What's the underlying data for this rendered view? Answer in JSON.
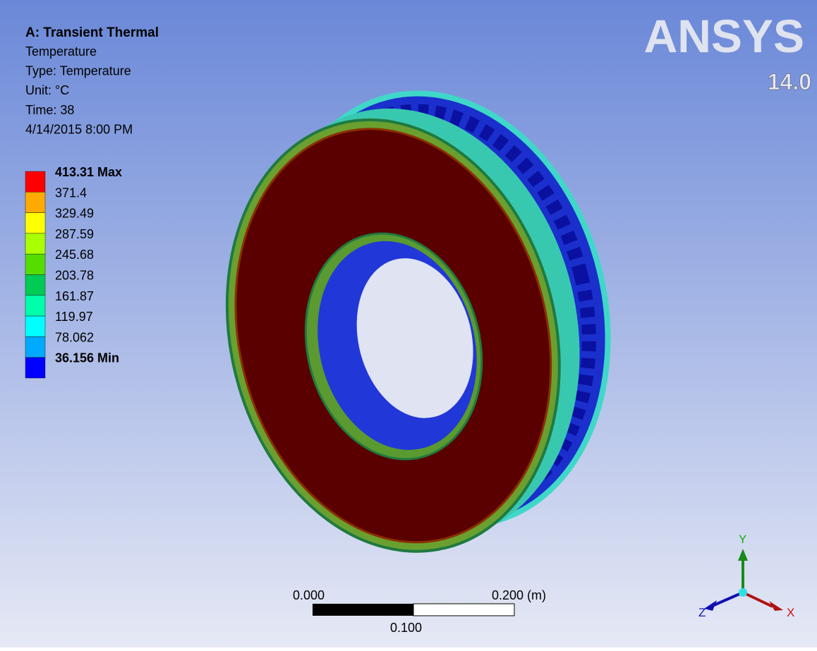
{
  "header": {
    "title": "A: Transient Thermal",
    "lines": [
      "Temperature",
      "Type: Temperature",
      "Unit: °C",
      "Time: 38",
      "4/14/2015 8:00 PM"
    ]
  },
  "legend": {
    "entries": [
      {
        "label": "413.31 Max",
        "color": "#ff0000",
        "bold": true
      },
      {
        "label": "371.4",
        "color": "#ffaa00",
        "bold": false
      },
      {
        "label": "329.49",
        "color": "#ffff00",
        "bold": false
      },
      {
        "label": "287.59",
        "color": "#aaff00",
        "bold": false
      },
      {
        "label": "245.68",
        "color": "#55dd00",
        "bold": false
      },
      {
        "label": "203.78",
        "color": "#00cc55",
        "bold": false
      },
      {
        "label": "161.87",
        "color": "#00ffaa",
        "bold": false
      },
      {
        "label": "119.97",
        "color": "#00ffff",
        "bold": false
      },
      {
        "label": "78.062",
        "color": "#00aaff",
        "bold": false
      },
      {
        "label": "36.156 Min",
        "color": "#0000ff",
        "bold": true
      }
    ]
  },
  "logo": {
    "name": "ANSYS",
    "version": "14.0"
  },
  "scale_bar": {
    "start": "0.000",
    "end": "0.200 (m)",
    "middle": "0.100"
  },
  "triad": {
    "y": "Y",
    "z": "Z",
    "x": "X"
  }
}
